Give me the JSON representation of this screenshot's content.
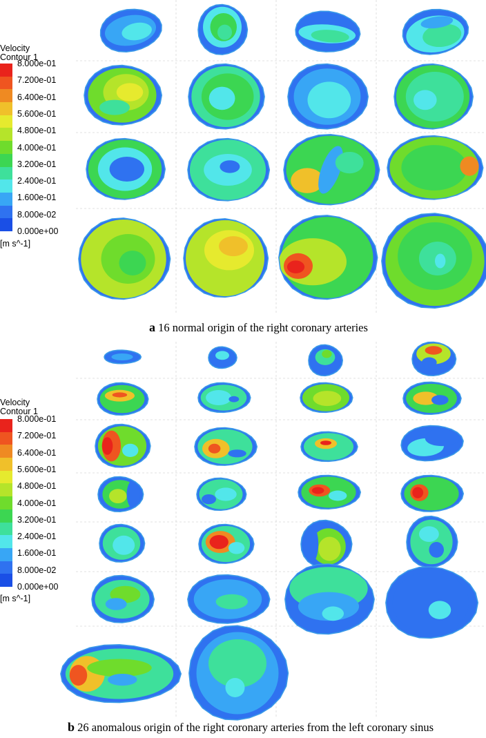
{
  "colormap": [
    "#1a4fe6",
    "#2f72f0",
    "#38a6f5",
    "#52e6ea",
    "#3ee09b",
    "#3cd652",
    "#6fdc2c",
    "#b5e42a",
    "#e6ea2e",
    "#f0c02a",
    "#ef8a22",
    "#ef5520",
    "#e9231c"
  ],
  "panel_a": {
    "legend": {
      "title_line1": "Velocity",
      "title_line2": "Contour 1",
      "ticks": [
        "8.000e-01",
        "7.200e-01",
        "6.400e-01",
        "5.600e-01",
        "4.800e-01",
        "4.000e-01",
        "3.200e-01",
        "2.400e-01",
        "1.600e-01",
        "8.000e-02",
        "0.000e+00"
      ],
      "unit": "[m s^-1]"
    },
    "caption_letter": "a",
    "caption_text": " 16 normal origin of the right coronary arteries"
  },
  "panel_b": {
    "legend": {
      "title_line1": "Velocity",
      "title_line2": "Contour 1",
      "ticks": [
        "8.000e-01",
        "7.200e-01",
        "6.400e-01",
        "5.600e-01",
        "4.800e-01",
        "4.000e-01",
        "3.200e-01",
        "2.400e-01",
        "1.600e-01",
        "8.000e-02",
        "0.000e+00"
      ],
      "unit": "[m s^-1]"
    },
    "caption_letter": "b",
    "caption_text": " 26 anomalous origin of the right coronary arteries from the left coronary sinus"
  }
}
